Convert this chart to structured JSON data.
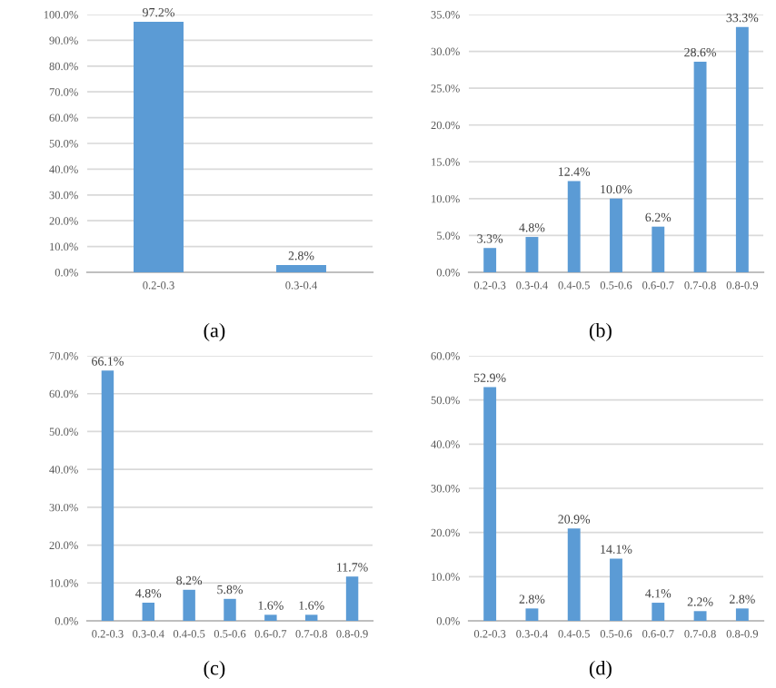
{
  "chart_data": [
    {
      "type": "bar",
      "categories": [
        "0.2-0.3",
        "0.3-0.4"
      ],
      "values": [
        97.2,
        2.8
      ],
      "value_labels": [
        "97.2%",
        "2.8%"
      ],
      "color": "#5b9bd5",
      "ylim": [
        0,
        100
      ],
      "yticks": [
        {
          "value": 0,
          "label": "0.0%"
        },
        {
          "value": 10,
          "label": "10.0%"
        },
        {
          "value": 20,
          "label": "20.0%"
        },
        {
          "value": 30,
          "label": "30.0%"
        },
        {
          "value": 40,
          "label": "40.0%"
        },
        {
          "value": 50,
          "label": "50.0%"
        },
        {
          "value": 60,
          "label": "60.0%"
        },
        {
          "value": 70,
          "label": "70.0%"
        },
        {
          "value": 80,
          "label": "80.0%"
        },
        {
          "value": 90,
          "label": "90.0%"
        },
        {
          "value": 100,
          "label": "100.0%"
        }
      ],
      "grid": "y",
      "annotations": [
        "(a)"
      ]
    },
    {
      "type": "bar",
      "categories": [
        "0.2-0.3",
        "0.3-0.4",
        "0.4-0.5",
        "0.5-0.6",
        "0.6-0.7",
        "0.7-0.8",
        "0.8-0.9"
      ],
      "values": [
        3.3,
        4.8,
        12.4,
        10.0,
        6.2,
        28.6,
        33.3
      ],
      "value_labels": [
        "3.3%",
        "4.8%",
        "12.4%",
        "10.0%",
        "6.2%",
        "28.6%",
        "33.3%"
      ],
      "color": "#5b9bd5",
      "ylim": [
        0,
        35
      ],
      "yticks": [
        {
          "value": 0,
          "label": "0.0%"
        },
        {
          "value": 5,
          "label": "5.0%"
        },
        {
          "value": 10,
          "label": "10.0%"
        },
        {
          "value": 15,
          "label": "15.0%"
        },
        {
          "value": 20,
          "label": "20.0%"
        },
        {
          "value": 25,
          "label": "25.0%"
        },
        {
          "value": 30,
          "label": "30.0%"
        },
        {
          "value": 35,
          "label": "35.0%"
        }
      ],
      "grid": "y",
      "annotations": [
        "(b)"
      ]
    },
    {
      "type": "bar",
      "categories": [
        "0.2-0.3",
        "0.3-0.4",
        "0.4-0.5",
        "0.5-0.6",
        "0.6-0.7",
        "0.7-0.8",
        "0.8-0.9"
      ],
      "values": [
        66.1,
        4.8,
        8.2,
        5.8,
        1.6,
        1.6,
        11.7
      ],
      "value_labels": [
        "66.1%",
        "4.8%",
        "8.2%",
        "5.8%",
        "1.6%",
        "1.6%",
        "11.7%"
      ],
      "color": "#5b9bd5",
      "ylim": [
        0,
        70
      ],
      "yticks": [
        {
          "value": 0,
          "label": "0.0%"
        },
        {
          "value": 10,
          "label": "10.0%"
        },
        {
          "value": 20,
          "label": "20.0%"
        },
        {
          "value": 30,
          "label": "30.0%"
        },
        {
          "value": 40,
          "label": "40.0%"
        },
        {
          "value": 50,
          "label": "50.0%"
        },
        {
          "value": 60,
          "label": "60.0%"
        },
        {
          "value": 70,
          "label": "70.0%"
        }
      ],
      "grid": "y",
      "annotations": [
        "(c)"
      ]
    },
    {
      "type": "bar",
      "categories": [
        "0.2-0.3",
        "0.3-0.4",
        "0.4-0.5",
        "0.5-0.6",
        "0.6-0.7",
        "0.7-0.8",
        "0.8-0.9"
      ],
      "values": [
        52.9,
        2.8,
        20.9,
        14.1,
        4.1,
        2.2,
        2.8
      ],
      "value_labels": [
        "52.9%",
        "2.8%",
        "20.9%",
        "14.1%",
        "4.1%",
        "2.2%",
        "2.8%"
      ],
      "color": "#5b9bd5",
      "ylim": [
        0,
        60
      ],
      "yticks": [
        {
          "value": 0,
          "label": "0.0%"
        },
        {
          "value": 10,
          "label": "10.0%"
        },
        {
          "value": 20,
          "label": "20.0%"
        },
        {
          "value": 30,
          "label": "30.0%"
        },
        {
          "value": 40,
          "label": "40.0%"
        },
        {
          "value": 50,
          "label": "50.0%"
        },
        {
          "value": 60,
          "label": "60.0%"
        }
      ],
      "grid": "y",
      "annotations": [
        "(d)"
      ]
    }
  ]
}
